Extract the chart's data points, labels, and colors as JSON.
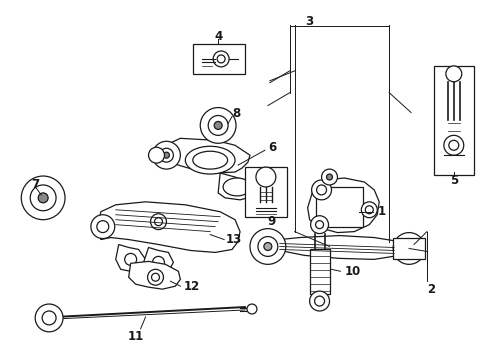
{
  "bg_color": "#ffffff",
  "line_color": "#1a1a1a",
  "fig_width": 4.89,
  "fig_height": 3.6,
  "dpi": 100,
  "lw": 0.9,
  "fontsize": 8.5
}
